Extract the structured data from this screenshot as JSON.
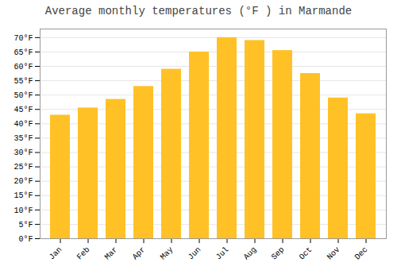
{
  "chart_data": {
    "type": "bar",
    "title": "Average monthly temperatures (°F ) in Marmande",
    "categories": [
      "Jan",
      "Feb",
      "Mar",
      "Apr",
      "May",
      "Jun",
      "Jul",
      "Aug",
      "Sep",
      "Oct",
      "Nov",
      "Dec"
    ],
    "values": [
      43,
      45.5,
      48.5,
      53,
      59,
      65,
      70,
      69,
      65.5,
      57.5,
      49,
      43.5
    ],
    "color": "#FFC125",
    "ylim": [
      0,
      73
    ],
    "yticks": [
      {
        "value": 0,
        "label": "0°F"
      },
      {
        "value": 5,
        "label": "5°F"
      },
      {
        "value": 10,
        "label": "10°F"
      },
      {
        "value": 15,
        "label": "15°F"
      },
      {
        "value": 20,
        "label": "20°F"
      },
      {
        "value": 25,
        "label": "25°F"
      },
      {
        "value": 30,
        "label": "30°F"
      },
      {
        "value": 35,
        "label": "35°F"
      },
      {
        "value": 40,
        "label": "40°F"
      },
      {
        "value": 45,
        "label": "45°F"
      },
      {
        "value": 50,
        "label": "50°F"
      },
      {
        "value": 55,
        "label": "55°F"
      },
      {
        "value": 60,
        "label": "60°F"
      },
      {
        "value": 65,
        "label": "65°F"
      },
      {
        "value": 70,
        "label": "70°F"
      }
    ],
    "grid": true
  }
}
